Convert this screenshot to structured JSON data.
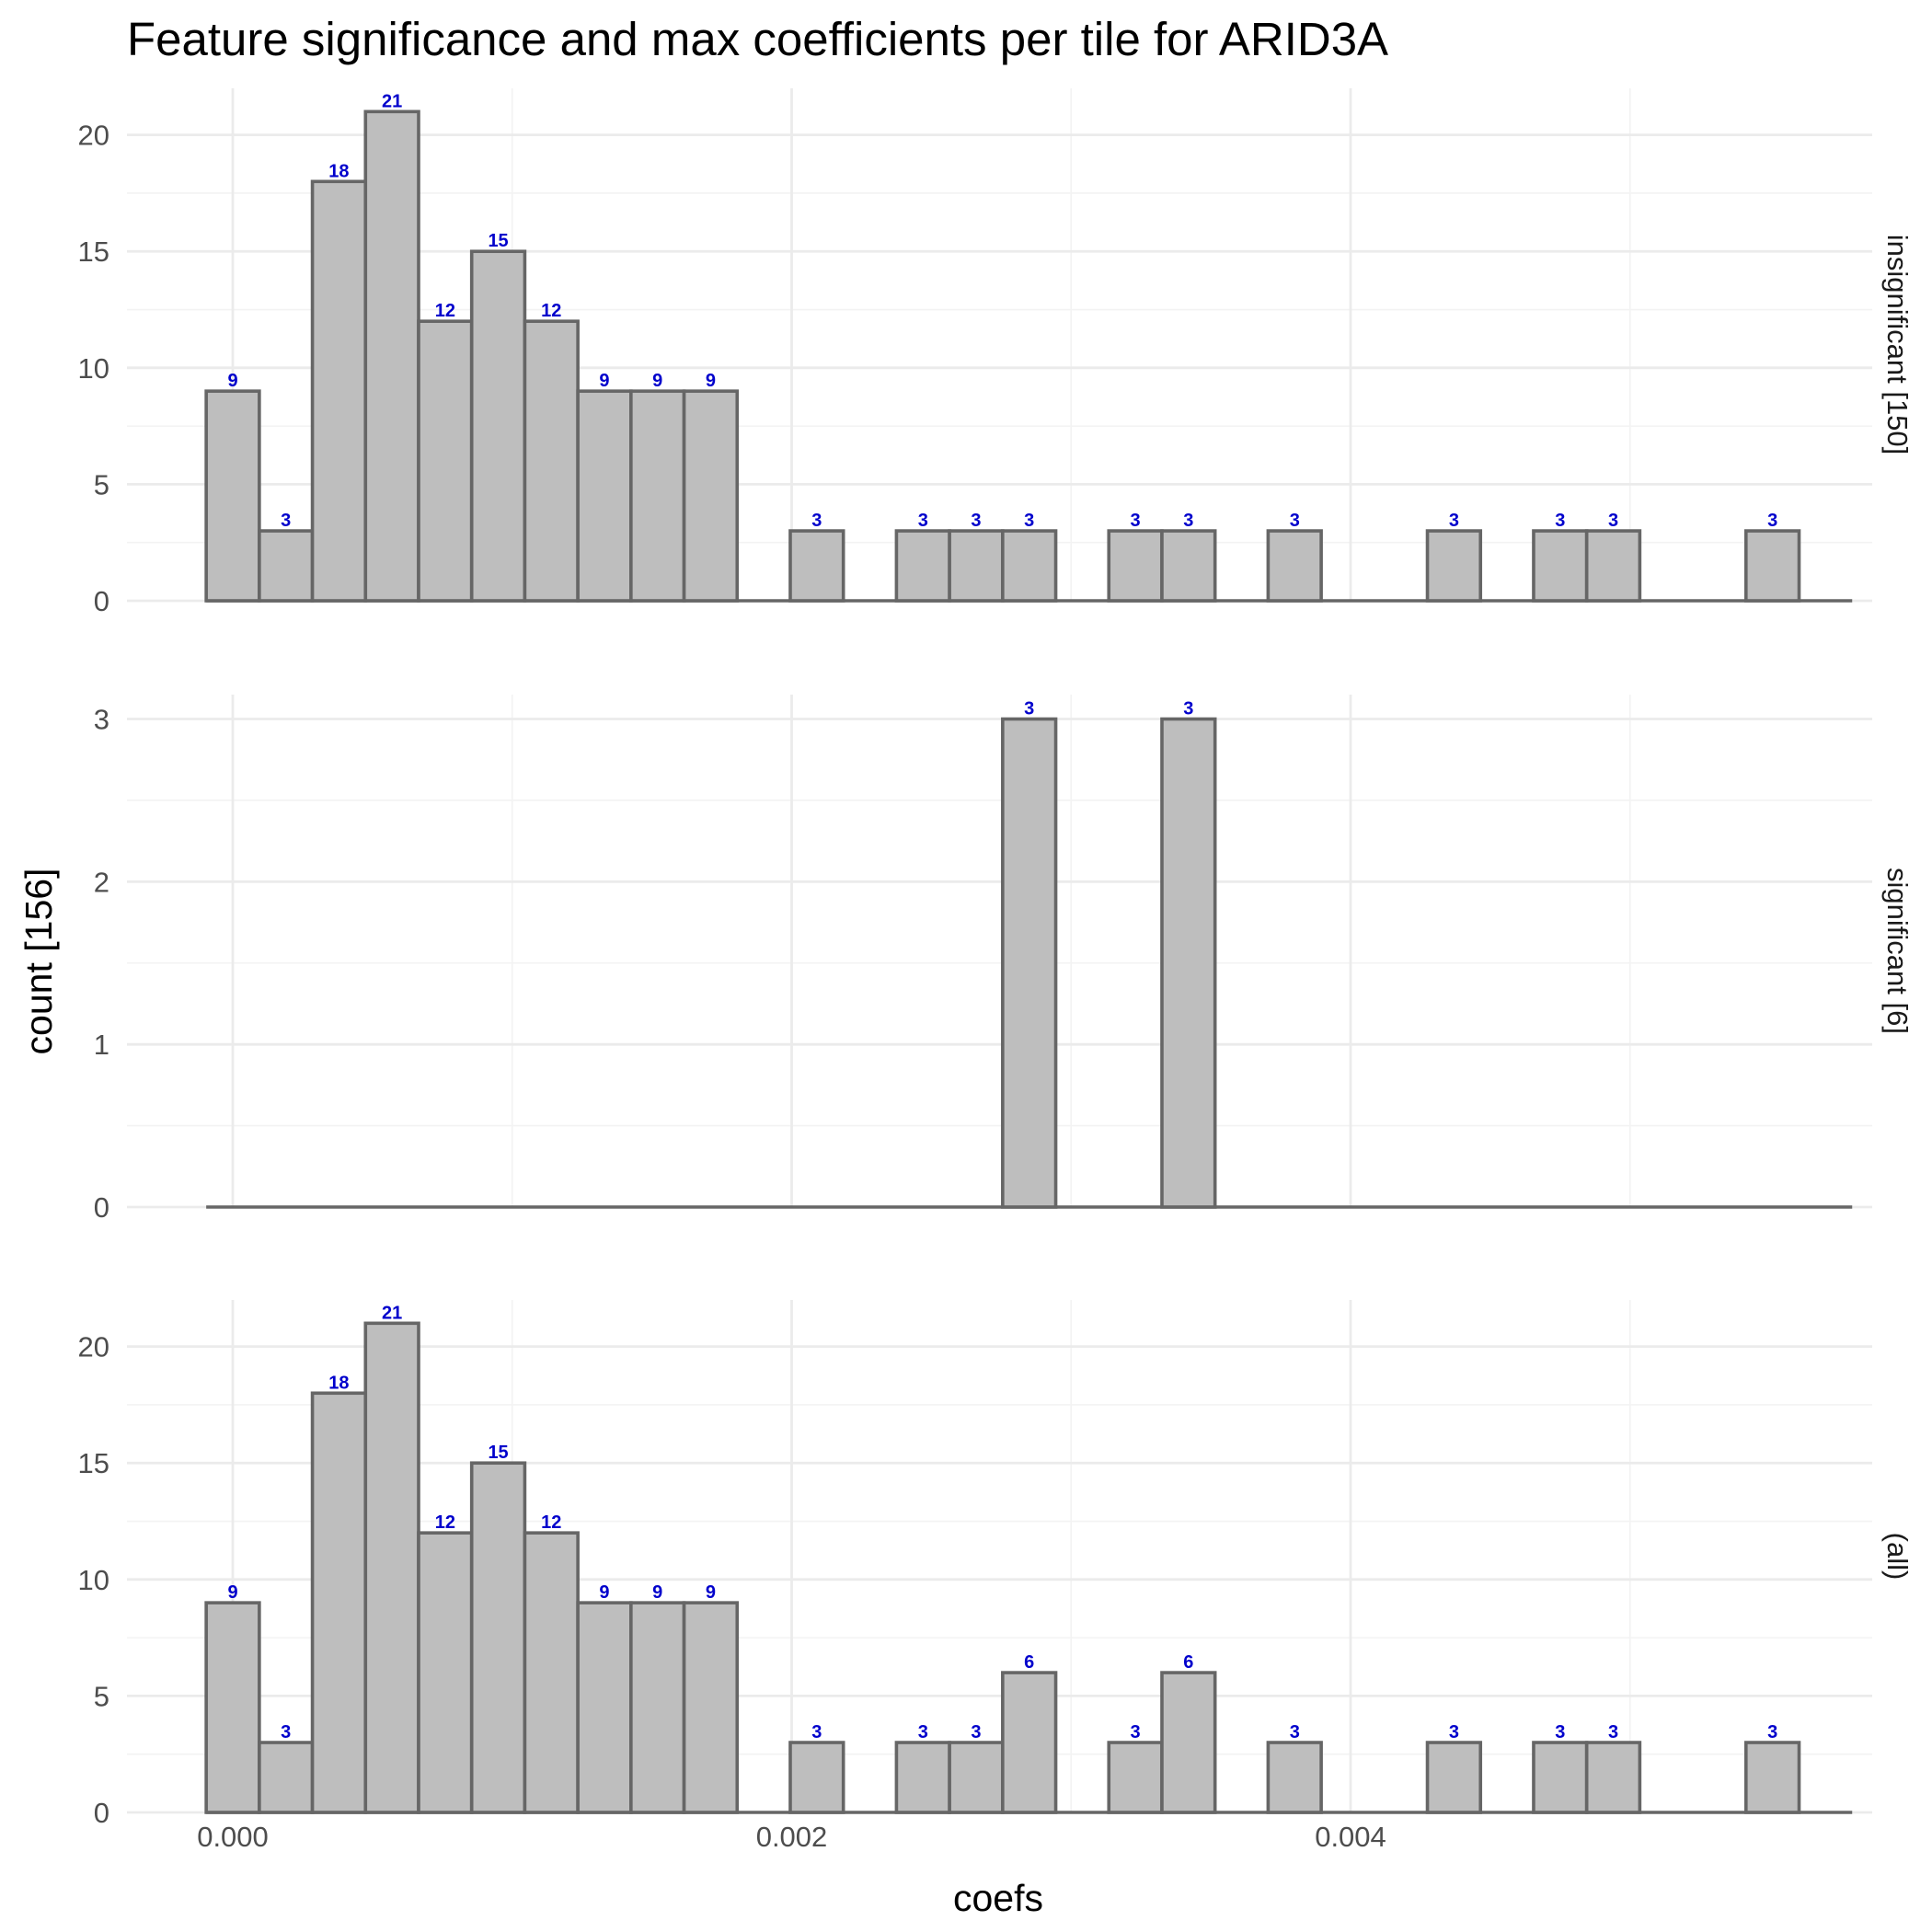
{
  "chart_data": {
    "type": "bar",
    "title": "Feature significance and max coefficients per tile for ARID3A",
    "xlabel": "coefs",
    "ylabel": "count [156]",
    "x_range": [
      -0.000375,
      0.00588
    ],
    "x_ticks": [
      0.0,
      0.002,
      0.004
    ],
    "x_tick_labels": [
      "0.000",
      "0.002",
      "0.004"
    ],
    "x_minor_ticks": [
      0.001,
      0.003,
      0.005
    ],
    "bin_width": 0.00019,
    "bin_centers": [
      0.0,
      0.00019,
      0.00038,
      0.00057,
      0.00076,
      0.00095,
      0.00114,
      0.00133,
      0.00152,
      0.00171,
      0.0019,
      0.00209,
      0.00228,
      0.00247,
      0.00266,
      0.00285,
      0.00304,
      0.00323,
      0.00342,
      0.00361,
      0.0038,
      0.00399,
      0.00418,
      0.00437,
      0.00456,
      0.00475,
      0.00494,
      0.00513,
      0.00532,
      0.00551,
      0.0057
    ],
    "grid": true,
    "facets": [
      {
        "label": "insignificant [150]",
        "ylim": [
          0,
          22
        ],
        "y_ticks": [
          0,
          5,
          10,
          15,
          20
        ],
        "values": [
          9,
          3,
          18,
          21,
          12,
          15,
          12,
          9,
          9,
          9,
          0,
          3,
          0,
          3,
          3,
          3,
          0,
          3,
          3,
          0,
          3,
          0,
          0,
          3,
          0,
          3,
          3,
          0,
          0,
          3,
          0
        ]
      },
      {
        "label": "significant [6]",
        "ylim": [
          0,
          3.15
        ],
        "y_ticks": [
          0,
          1,
          2,
          3
        ],
        "values": [
          0,
          0,
          0,
          0,
          0,
          0,
          0,
          0,
          0,
          0,
          0,
          0,
          0,
          0,
          0,
          3,
          0,
          0,
          3,
          0,
          0,
          0,
          0,
          0,
          0,
          0,
          0,
          0,
          0,
          0,
          0
        ]
      },
      {
        "label": "(all)",
        "ylim": [
          0,
          22
        ],
        "y_ticks": [
          0,
          5,
          10,
          15,
          20
        ],
        "values": [
          9,
          3,
          18,
          21,
          12,
          15,
          12,
          9,
          9,
          9,
          0,
          3,
          0,
          3,
          3,
          6,
          0,
          3,
          6,
          0,
          3,
          0,
          0,
          3,
          0,
          3,
          3,
          0,
          0,
          3,
          0
        ]
      }
    ]
  }
}
